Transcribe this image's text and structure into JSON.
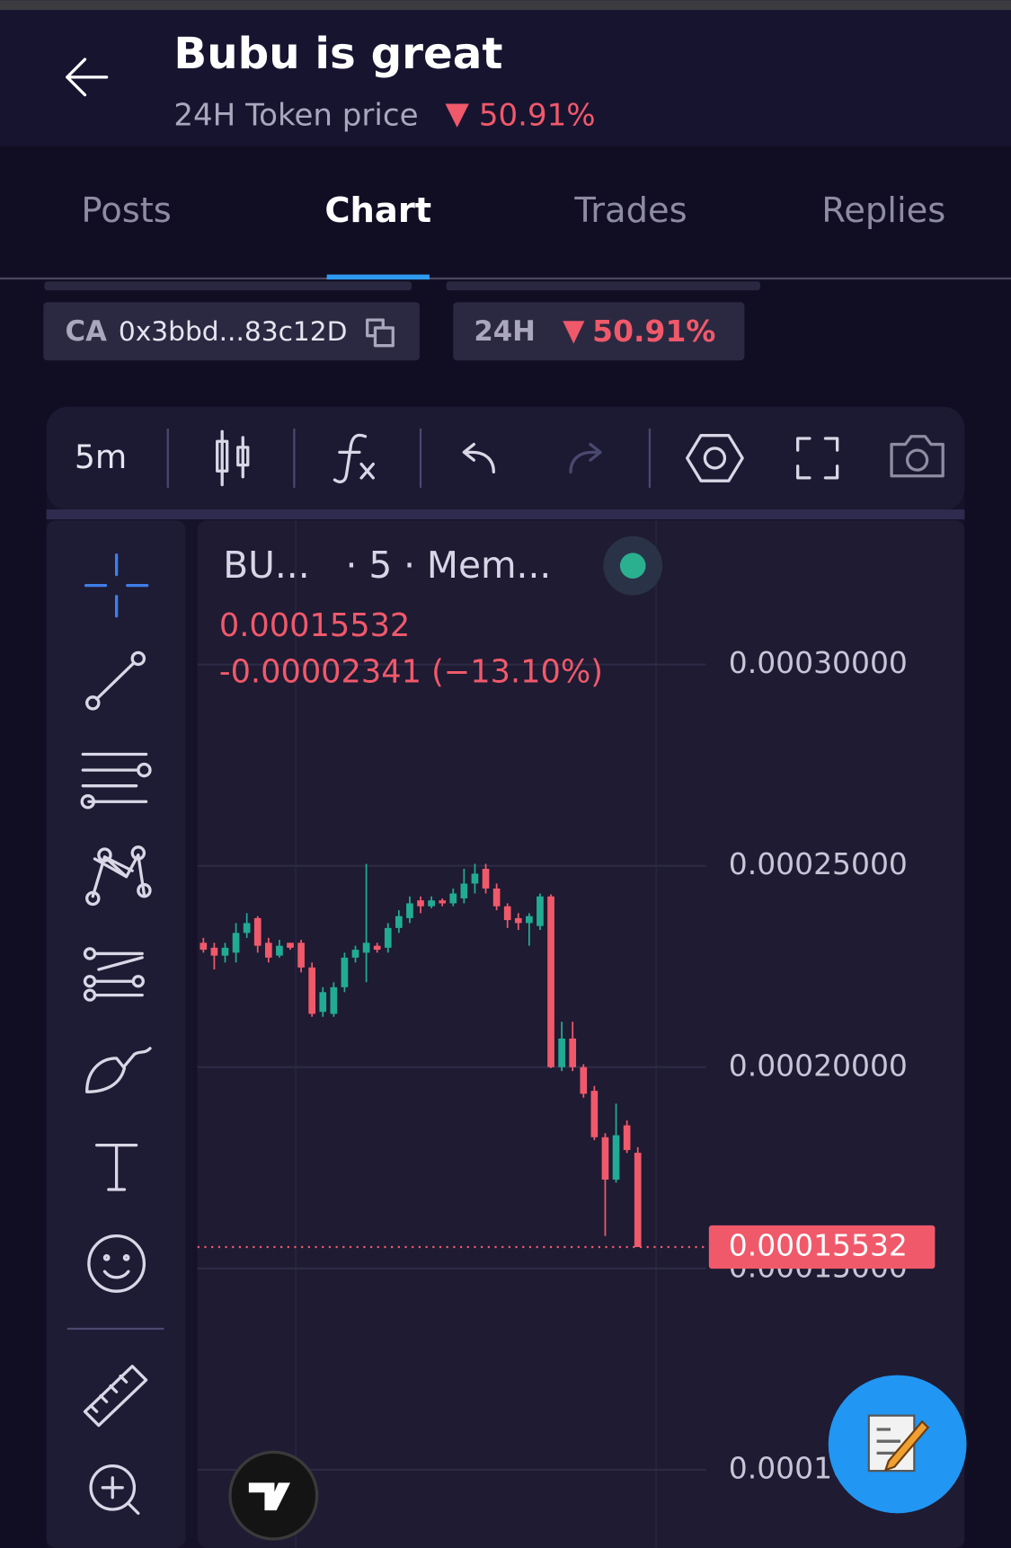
{
  "header": {
    "title": "Bubu is great",
    "subtitle": "24H Token price",
    "change": "50.91%"
  },
  "tabs": [
    "Posts",
    "Chart",
    "Trades",
    "Replies"
  ],
  "info": {
    "ca_label": "CA",
    "ca_value": "0x3bbd...83c12D",
    "period_label": "24H",
    "period_change": "50.91%"
  },
  "toolbar": {
    "interval": "5m"
  },
  "chart_data": {
    "type": "candlestick",
    "symbol_label": "BU...",
    "interval_label": "· 5 · Mem...",
    "change_label": "-0.00002341 (−13.10%)",
    "up_color": "#22ab94",
    "down_color": "#f0596a",
    "grid": true,
    "ylim": [
      8.38e-05,
      0.0003358
    ],
    "yticks": [
      {
        "value": 0.0001,
        "label": "0.00010000"
      },
      {
        "value": 0.00015,
        "label": "0.00015000"
      },
      {
        "value": 0.0002,
        "label": "0.00020000"
      },
      {
        "value": 0.00025,
        "label": "0.00025000"
      },
      {
        "value": 0.0003,
        "label": "0.00030000"
      }
    ],
    "open": [
      0.00023088,
      0.00022965,
      0.00022769,
      0.00022843,
      0.00023333,
      0.00023701,
      0.00023088,
      0.00022769,
      0.00023088,
      0.00023088,
      0.00022475,
      0.00021372,
      0.00021323,
      0.00021985,
      0.0002272,
      0.00022843,
      0.00023014,
      0.00022965,
      0.00023456,
      0.00023701,
      0.00024142,
      0.00023995,
      0.00024142,
      0.00024068,
      0.00024191,
      0.00024559,
      0.00024926,
      0.00024436,
      0.00023995,
      0.00023701,
      0.00023578,
      0.00023505,
      0.0002424,
      0.0002,
      0.0002071,
      0.0002,
      0.00019411,
      0.00018259,
      0.00017206,
      0.00018554,
      0.00017873
    ],
    "high": [
      0.0002321,
      0.00023088,
      0.00023088,
      0.00023578,
      0.00023823,
      0.0002375,
      0.0002321,
      0.00023161,
      0.00023088,
      0.00023161,
      0.00022598,
      0.00021985,
      0.00022108,
      0.00022843,
      0.00023014,
      0.00025049,
      0.00023088,
      0.00023578,
      0.00023897,
      0.0002424,
      0.0002424,
      0.0002424,
      0.00024191,
      0.00024436,
      0.00024926,
      0.00025049,
      0.00025049,
      0.00024559,
      0.00024068,
      0.00023823,
      0.00023823,
      0.00024313,
      0.00024289,
      0.00021127,
      0.00021127,
      0.00020073,
      0.00019534,
      0.00018358,
      0.00019093,
      0.00018676,
      0.00018014
    ],
    "low": [
      0.00022843,
      0.00022426,
      0.00022598,
      0.00022598,
      0.0002321,
      0.00022843,
      0.00022598,
      0.0002272,
      0.00022916,
      0.00022353,
      0.0002125,
      0.0002125,
      0.0002125,
      0.00021862,
      0.00022598,
      0.00022108,
      0.00022843,
      0.00022843,
      0.00023333,
      0.00023578,
      0.00023823,
      0.00023946,
      0.00023995,
      0.00023995,
      0.00024068,
      0.00024313,
      0.00024313,
      0.00023897,
      0.00023456,
      0.00023407,
      0.00023014,
      0.00023407,
      0.00019975,
      0.00019902,
      0.00019902,
      0.0001924,
      0.00018186,
      0.00015808,
      0.00017132,
      0.00017867,
      0.00015532
    ],
    "close": [
      0.00022916,
      0.00022769,
      0.00022965,
      0.00023333,
      0.00023578,
      0.00023014,
      0.0002272,
      0.00023014,
      0.00022965,
      0.00022475,
      0.00021323,
      0.00021862,
      0.00021985,
      0.0002272,
      0.00022916,
      0.00023088,
      0.00022916,
      0.00023456,
      0.0002375,
      0.00024068,
      0.00023995,
      0.00024142,
      0.00024068,
      0.00024313,
      0.00024559,
      0.00024804,
      0.00024436,
      0.00023995,
      0.00023652,
      0.00023578,
      0.0002375,
      0.0002424,
      0.0002,
      0.0002071,
      0.0002,
      0.00019338,
      0.00018259,
      0.00017206,
      0.00018308,
      0.00017941,
      0.00015532
    ]
  }
}
